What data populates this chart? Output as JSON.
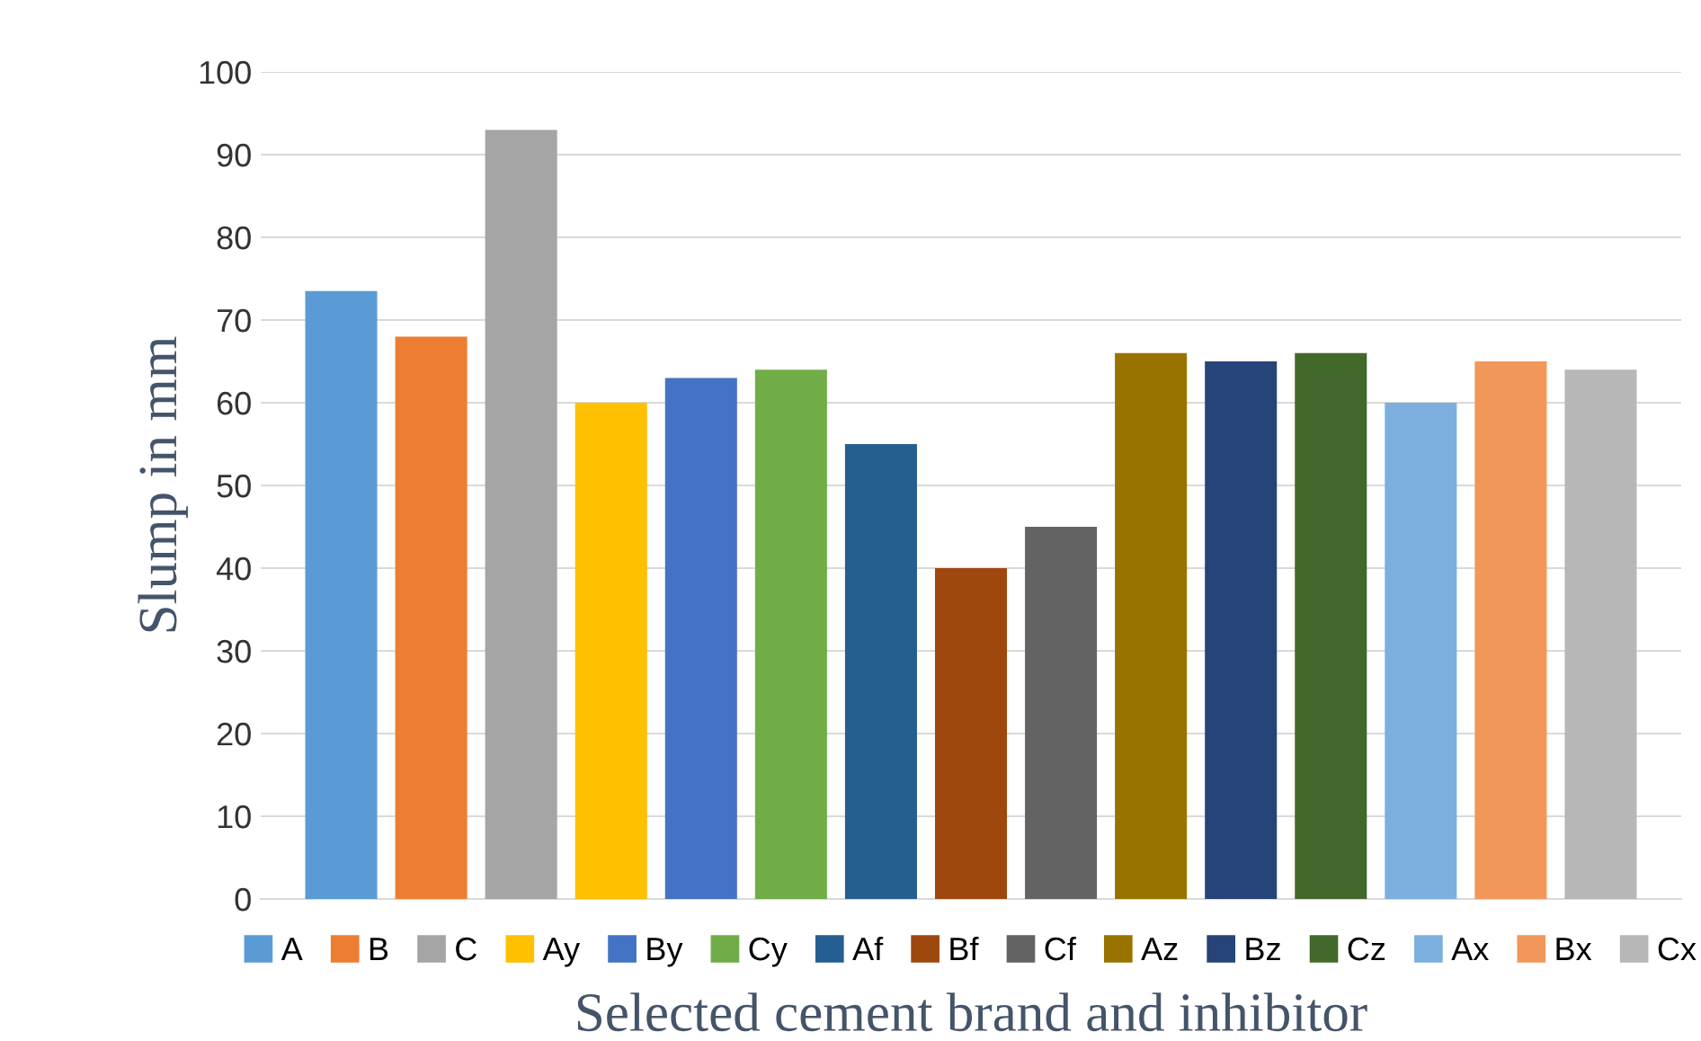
{
  "chart_data": {
    "type": "bar",
    "xlabel": "Selected cement brand and inhibitor",
    "ylabel": "Slump in mm",
    "categories": [
      null
    ],
    "ylim": [
      0,
      100
    ],
    "yticks": [
      0,
      10,
      20,
      30,
      40,
      50,
      60,
      70,
      80,
      90,
      100
    ],
    "grid": "y",
    "legend": "bottom",
    "series": [
      {
        "name": "A",
        "color": "#5b9bd5",
        "values": [
          73.5
        ]
      },
      {
        "name": "B",
        "color": "#ed7d31",
        "values": [
          68
        ]
      },
      {
        "name": "C",
        "color": "#a5a5a5",
        "values": [
          93
        ]
      },
      {
        "name": "Ay",
        "color": "#ffc000",
        "values": [
          60
        ]
      },
      {
        "name": "By",
        "color": "#4472c4",
        "values": [
          63
        ]
      },
      {
        "name": "Cy",
        "color": "#70ad47",
        "values": [
          64
        ]
      },
      {
        "name": "Af",
        "color": "#255e91",
        "values": [
          55
        ]
      },
      {
        "name": "Bf",
        "color": "#9e480e",
        "values": [
          40
        ]
      },
      {
        "name": "Cf",
        "color": "#636363",
        "values": [
          45
        ]
      },
      {
        "name": "Az",
        "color": "#997300",
        "values": [
          66
        ]
      },
      {
        "name": "Bz",
        "color": "#264478",
        "values": [
          65
        ]
      },
      {
        "name": "Cz",
        "color": "#43682b",
        "values": [
          66
        ]
      },
      {
        "name": "Ax",
        "color": "#7cafdd",
        "values": [
          60
        ]
      },
      {
        "name": "Bx",
        "color": "#f1975a",
        "values": [
          65
        ]
      },
      {
        "name": "Cx",
        "color": "#b7b7b7",
        "values": [
          64
        ]
      }
    ]
  }
}
